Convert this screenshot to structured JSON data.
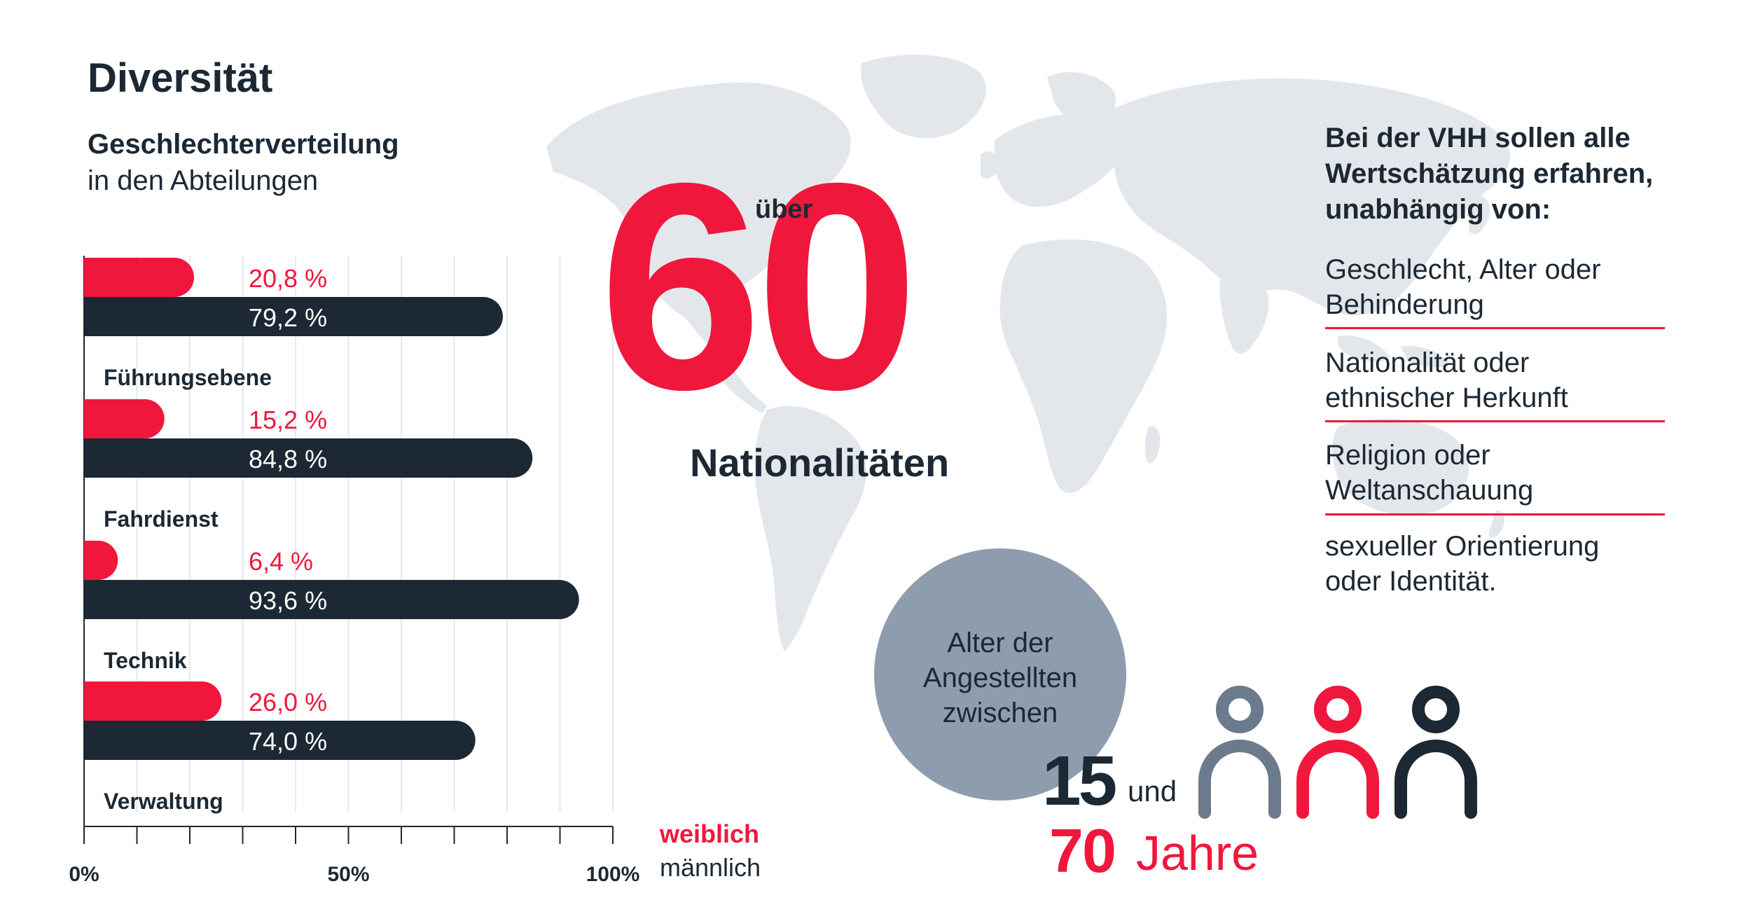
{
  "header": {
    "title": "Diversität",
    "subtitle_bold": "Geschlechterverteilung",
    "subtitle_regular": "in den Abteilungen"
  },
  "colors": {
    "red": "#f0173c",
    "dark": "#1c2833",
    "grey": "#8e9dae",
    "map": "#e3e7ec"
  },
  "chart_data": {
    "type": "bar",
    "orientation": "horizontal",
    "categories": [
      "Führungsebene",
      "Fahrdienst",
      "Technik",
      "Verwaltung"
    ],
    "series": [
      {
        "name": "weiblich",
        "values": [
          20.8,
          15.2,
          6.4,
          26.0
        ],
        "labels": [
          "20,8 %",
          "15,2 %",
          "6,4 %",
          "26,0 %"
        ],
        "color": "#f0173c"
      },
      {
        "name": "männlich",
        "values": [
          79.2,
          84.8,
          93.6,
          74.0
        ],
        "labels": [
          "79,2 %",
          "84,8 %",
          "93,6 %",
          "74,0 %"
        ],
        "color": "#1c2833"
      }
    ],
    "xlim": [
      0,
      100
    ],
    "xticks": [
      "0%",
      "50%",
      "100%"
    ],
    "grid": true,
    "legend": "bottom-right"
  },
  "nationalities": {
    "prefix": "über",
    "number": "60",
    "label": "Nationalitäten"
  },
  "values_panel": {
    "heading": [
      "Bei der VHH sollen alle",
      "Wertschätzung erfahren,",
      "unabhängig von:"
    ],
    "items": [
      [
        "Geschlecht, Alter oder",
        "Behinderung"
      ],
      [
        "Nationalität oder",
        "ethnischer Herkunft"
      ],
      [
        "Religion oder",
        "Weltanschauung"
      ],
      [
        "sexueller Orientierung",
        "oder Identität."
      ]
    ]
  },
  "age": {
    "circle_lines": [
      "Alter der",
      "Angestellten",
      "zwischen"
    ],
    "min": "15",
    "connector": "und",
    "max": "70",
    "unit": "Jahre",
    "people_icons": [
      "person-icon-grey",
      "person-icon-red",
      "person-icon-dark"
    ]
  }
}
